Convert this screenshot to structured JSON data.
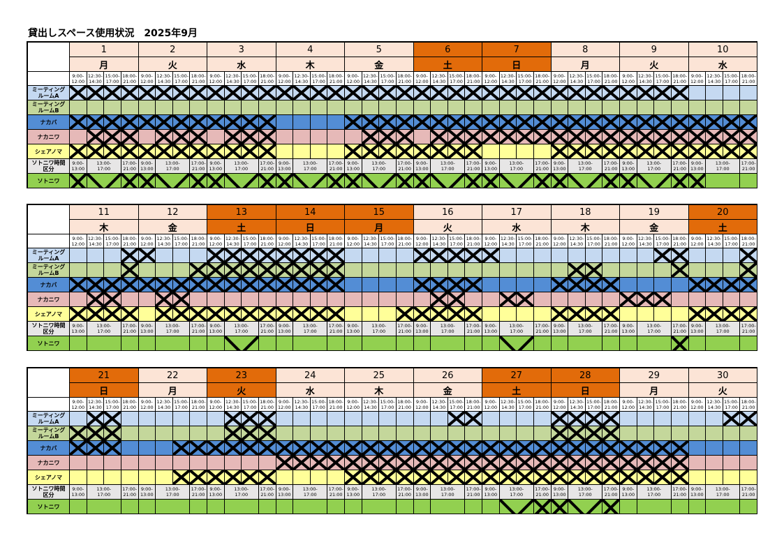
{
  "title": "貸出しスペース使用状況　2025年9月",
  "colors": {
    "weekend": "#e26b0a",
    "weekday": "#fce4d6",
    "meeting_a": "#c5d9f1",
    "meeting_b": "#c4d79b",
    "nakabaa": "#538dd5",
    "nakaniwa": "#e6b9b8",
    "shareanoma": "#ffff99",
    "sotoniwa": "#92d050",
    "slot_header": "#e7e6e6"
  },
  "slot_labels": [
    [
      "9:00-",
      "12:00"
    ],
    [
      "12:30-",
      "14:30"
    ],
    [
      "15:00-",
      "17:00"
    ],
    [
      "18:00-",
      "21:00"
    ]
  ],
  "sotoniwa_slot_labels": [
    [
      "9:00-",
      "13:00"
    ],
    [
      "13:00-",
      "17:00"
    ],
    [
      "17:00-",
      "21:00"
    ]
  ],
  "rooms": [
    {
      "label_lines": [
        "ミーティング",
        "ルームA"
      ]
    },
    {
      "label_lines": [
        "ミーティング",
        "ルームB"
      ]
    },
    {
      "label_lines": [
        "ナカバ"
      ]
    },
    {
      "label_lines": [
        "ナカニワ"
      ]
    },
    {
      "label_lines": [
        "シェアノマ"
      ]
    }
  ],
  "sotoniwa_header_lines": [
    "ソトニワ時間",
    "区分"
  ],
  "sotoniwa_label": "ソトニワ",
  "blocks": [
    {
      "days": [
        {
          "day": "1",
          "weekday": "月",
          "weekend": false
        },
        {
          "day": "2",
          "weekday": "火",
          "weekend": false
        },
        {
          "day": "3",
          "weekday": "水",
          "weekend": false
        },
        {
          "day": "4",
          "weekday": "木",
          "weekend": false
        },
        {
          "day": "5",
          "weekday": "金",
          "weekend": false
        },
        {
          "day": "6",
          "weekday": "土",
          "weekend": true
        },
        {
          "day": "7",
          "weekday": "日",
          "weekend": true
        },
        {
          "day": "8",
          "weekday": "月",
          "weekend": false
        },
        {
          "day": "9",
          "weekday": "火",
          "weekend": false
        },
        {
          "day": "10",
          "weekday": "水",
          "weekend": false
        }
      ],
      "booked": [
        "1111111111111111111111111111111111110000",
        "0000000000000000000000000000000000000000",
        "1111111111110000111111111111111111111111",
        "0111011101110000011101111111111111111111",
        "1111111111110000111111110000111111111111"
      ],
      "sotoniwa_booked": "111111111111111111111111111100"
    },
    {
      "days": [
        {
          "day": "11",
          "weekday": "木",
          "weekend": false
        },
        {
          "day": "12",
          "weekday": "金",
          "weekend": false
        },
        {
          "day": "13",
          "weekday": "土",
          "weekend": true
        },
        {
          "day": "14",
          "weekday": "日",
          "weekend": true
        },
        {
          "day": "15",
          "weekday": "月",
          "weekend": true
        },
        {
          "day": "16",
          "weekday": "火",
          "weekend": false
        },
        {
          "day": "17",
          "weekday": "水",
          "weekend": false
        },
        {
          "day": "18",
          "weekday": "木",
          "weekend": false
        },
        {
          "day": "19",
          "weekday": "金",
          "weekend": false
        },
        {
          "day": "20",
          "weekday": "土",
          "weekend": true
        }
      ],
      "booked": [
        "0001100011111111000011111000000000110001",
        "0001000111111111000000000000011000010001",
        "1111111111111111000011110000111100001111",
        "0110011000000000000001100110000011100000",
        "1111011111111111000111110000111100001111"
      ],
      "sotoniwa_booked": "000000010000000000010000001000"
    },
    {
      "days": [
        {
          "day": "21",
          "weekday": "日",
          "weekend": true
        },
        {
          "day": "22",
          "weekday": "月",
          "weekend": false
        },
        {
          "day": "23",
          "weekday": "火",
          "weekend": true
        },
        {
          "day": "24",
          "weekday": "水",
          "weekend": false
        },
        {
          "day": "25",
          "weekday": "木",
          "weekend": false
        },
        {
          "day": "26",
          "weekday": "金",
          "weekend": false
        },
        {
          "day": "27",
          "weekday": "土",
          "weekend": true
        },
        {
          "day": "28",
          "weekday": "日",
          "weekend": true
        },
        {
          "day": "29",
          "weekday": "月",
          "weekend": false
        },
        {
          "day": "30",
          "weekday": "火",
          "weekend": false
        }
      ],
      "booked": [
        "0110000001110000000000110000111100000011",
        "1110000001110000000000000000111100000000",
        "1110001111111111111111111111111111110000",
        "0000000000001111111111111111111111110000",
        "0000001111110000111111111111111111110000"
      ],
      "sotoniwa_booked": "000000000000000000011111000000"
    }
  ]
}
